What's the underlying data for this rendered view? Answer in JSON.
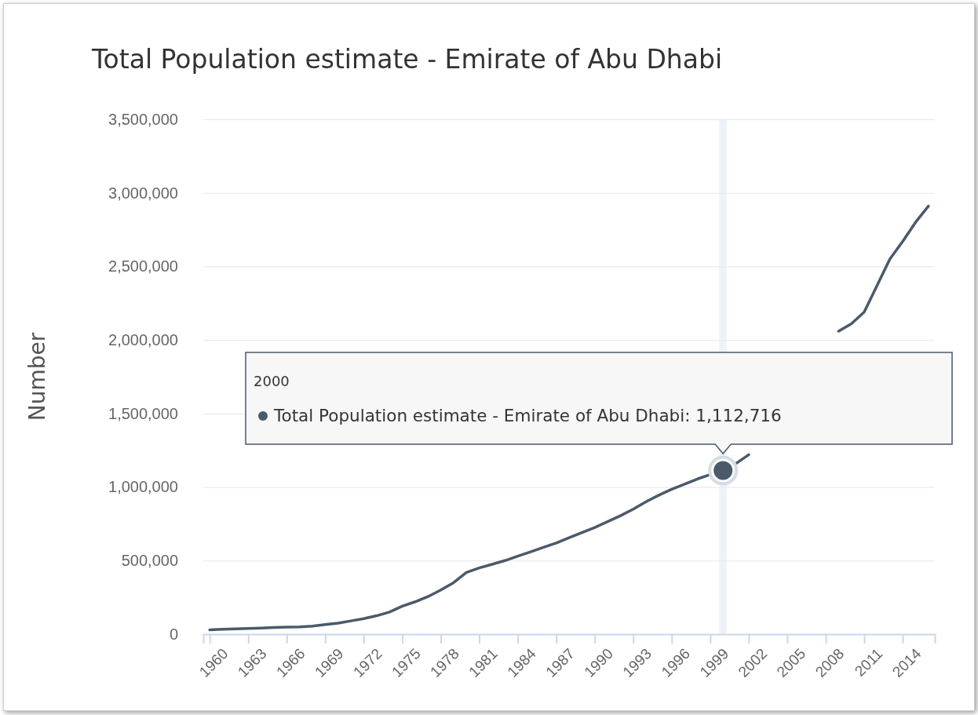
{
  "chart_data": {
    "type": "line",
    "title": "Total Population estimate - Emirate of Abu Dhabi",
    "ylabel": "Number",
    "x": [
      1960,
      1961,
      1962,
      1963,
      1964,
      1965,
      1966,
      1967,
      1968,
      1969,
      1970,
      1971,
      1972,
      1973,
      1974,
      1975,
      1976,
      1977,
      1978,
      1979,
      1980,
      1981,
      1982,
      1983,
      1984,
      1985,
      1986,
      1987,
      1988,
      1989,
      1990,
      1991,
      1992,
      1993,
      1994,
      1995,
      1996,
      1997,
      1998,
      1999,
      2000,
      2001,
      2002,
      2003,
      2004,
      2005,
      2006,
      2007,
      2008,
      2009,
      2010,
      2011,
      2012,
      2013,
      2014,
      2015,
      2016
    ],
    "series": [
      {
        "color": "#4a5a6a",
        "values": [
          30000,
          33000,
          36000,
          39000,
          42000,
          45000,
          48000,
          50000,
          55000,
          65000,
          75000,
          90000,
          105000,
          125000,
          150000,
          190000,
          220000,
          255000,
          300000,
          350000,
          420000,
          450000,
          475000,
          500000,
          530000,
          560000,
          590000,
          620000,
          655000,
          690000,
          725000,
          765000,
          805000,
          850000,
          900000,
          945000,
          985000,
          1020000,
          1055000,
          1085000,
          1112716,
          1160000,
          1220000,
          null,
          null,
          null,
          null,
          null,
          null,
          2060000,
          2110000,
          2190000,
          2370000,
          2550000,
          2670000,
          2800000,
          2910000
        ]
      }
    ],
    "xlim": [
      1959.5,
      2016.5
    ],
    "xticks": [
      1960,
      1963,
      1966,
      1969,
      1972,
      1975,
      1978,
      1981,
      1984,
      1987,
      1990,
      1993,
      1996,
      1999,
      2002,
      2005,
      2008,
      2011,
      2014
    ],
    "ylim": [
      0,
      3500000
    ],
    "yticks": [
      {
        "value": 0,
        "label": "0"
      },
      {
        "value": 500000,
        "label": "500,000"
      },
      {
        "value": 1000000,
        "label": "1,000,000"
      },
      {
        "value": 1500000,
        "label": "1,500,000"
      },
      {
        "value": 2000000,
        "label": "2,000,000"
      },
      {
        "value": 2500000,
        "label": "2,500,000"
      },
      {
        "value": 3000000,
        "label": "3,000,000"
      },
      {
        "value": 3500000,
        "label": "3,500,000"
      }
    ],
    "grid": "y",
    "marker": "none",
    "line_style": "solid",
    "bands": [
      {
        "axis": "x",
        "from": 1999.7,
        "to": 2000.3,
        "color": "#eef3f9"
      }
    ],
    "annotations": [
      "2000",
      "Total Population estimate - Emirate of Abu Dhabi: 1,112,716"
    ]
  }
}
